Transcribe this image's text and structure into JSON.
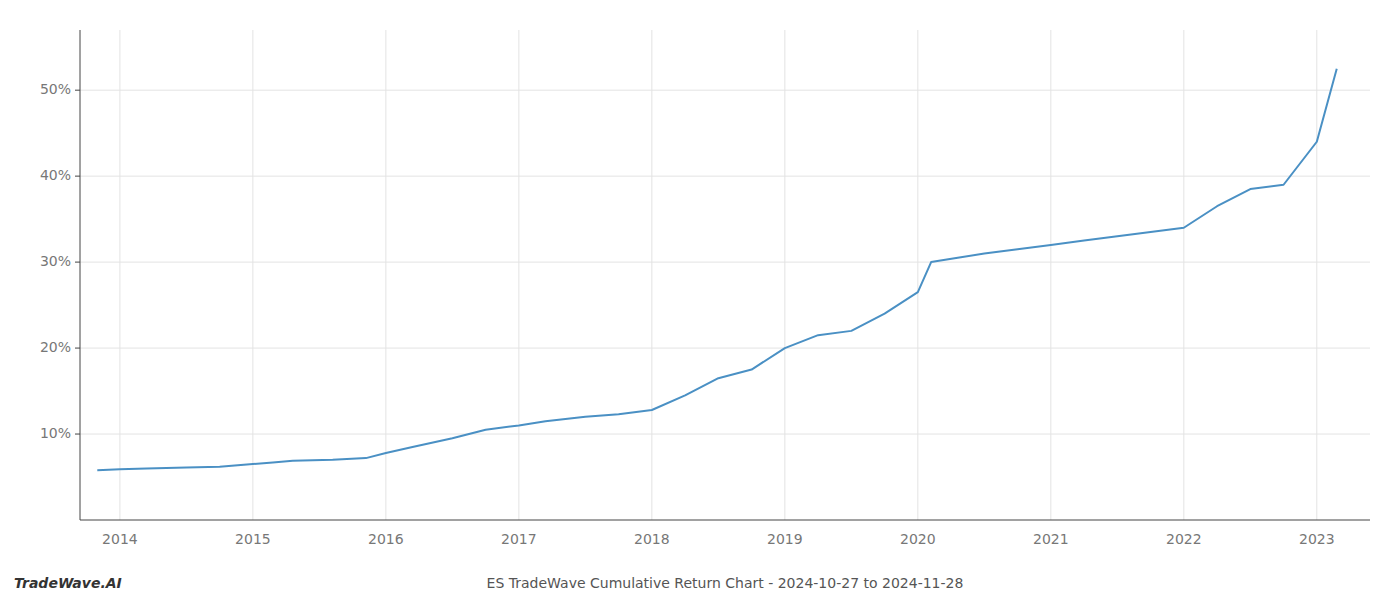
{
  "chart_data": {
    "type": "line",
    "title": "ES TradeWave Cumulative Return Chart - 2024-10-27 to 2024-11-28",
    "annotations": [
      "TradeWave.AI"
    ],
    "color": "#4a90c4",
    "grid": true,
    "x": [
      2013.83,
      2014.0,
      2014.2,
      2014.5,
      2014.75,
      2015.0,
      2015.15,
      2015.3,
      2015.6,
      2015.85,
      2016.0,
      2016.2,
      2016.5,
      2016.75,
      2017.0,
      2017.2,
      2017.5,
      2017.75,
      2018.0,
      2018.25,
      2018.5,
      2018.75,
      2019.0,
      2019.25,
      2019.5,
      2019.75,
      2020.0,
      2020.1,
      2020.3,
      2020.5,
      2020.75,
      2021.0,
      2021.25,
      2021.5,
      2021.75,
      2022.0,
      2022.25,
      2022.5,
      2022.75,
      2023.0,
      2023.15
    ],
    "values": [
      5.8,
      5.9,
      6.0,
      6.1,
      6.2,
      6.5,
      6.7,
      6.9,
      7.0,
      7.2,
      7.8,
      8.5,
      9.5,
      10.5,
      11.0,
      11.5,
      12.0,
      12.3,
      12.8,
      14.5,
      16.5,
      17.5,
      20.0,
      21.5,
      22.0,
      24.0,
      26.5,
      30.0,
      30.5,
      31.0,
      31.5,
      32.0,
      32.5,
      33.0,
      33.5,
      34.0,
      36.5,
      38.5,
      39.0,
      44.0,
      52.5
    ],
    "xlim": [
      2013.7,
      2023.4
    ],
    "ylim": [
      0,
      57
    ],
    "xticks": [
      2014,
      2015,
      2016,
      2017,
      2018,
      2019,
      2020,
      2021,
      2022,
      2023
    ],
    "yticks": [
      {
        "value": 10,
        "label": "10%"
      },
      {
        "value": 20,
        "label": "20%"
      },
      {
        "value": 30,
        "label": "30%"
      },
      {
        "value": 40,
        "label": "40%"
      },
      {
        "value": 50,
        "label": "50%"
      }
    ]
  }
}
